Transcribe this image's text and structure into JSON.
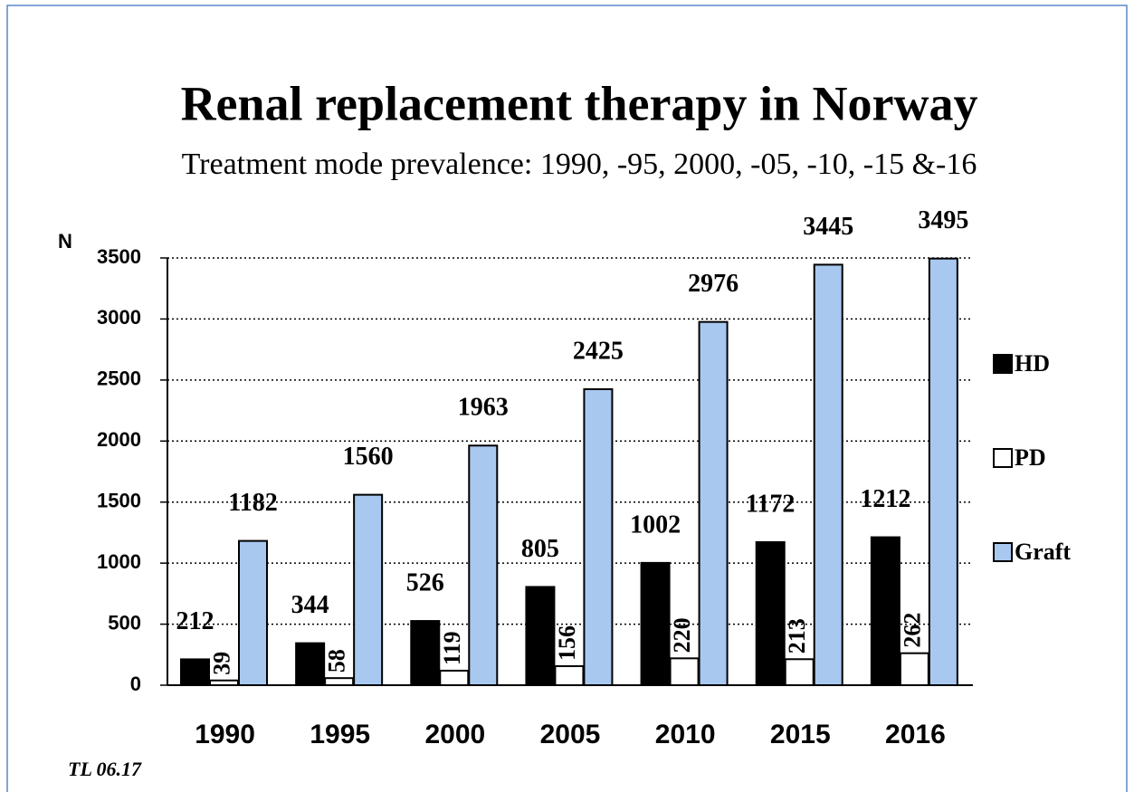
{
  "chart_data": {
    "type": "bar",
    "title": "Renal replacement therapy in Norway",
    "subtitle": "Treatment mode prevalence: 1990, -95, 2000, -05, -10, -15 &-16",
    "y_label": "N",
    "footnote": "TL 06.17",
    "categories": [
      "1990",
      "1995",
      "2000",
      "2005",
      "2010",
      "2015",
      "2016"
    ],
    "series": [
      {
        "name": "HD",
        "color": "#000000",
        "values": [
          212,
          344,
          526,
          805,
          1002,
          1172,
          1212
        ]
      },
      {
        "name": "PD",
        "color": "#ffffff",
        "values": [
          39,
          58,
          119,
          156,
          220,
          213,
          262
        ]
      },
      {
        "name": "Graft",
        "color": "#a9c8f0",
        "values": [
          1182,
          1560,
          1963,
          2425,
          2976,
          3445,
          3495
        ]
      }
    ],
    "ylim": [
      0,
      3500
    ],
    "yticks": [
      0,
      500,
      1000,
      1500,
      2000,
      2500,
      3000,
      3500
    ],
    "grid": true,
    "legend": "right"
  }
}
